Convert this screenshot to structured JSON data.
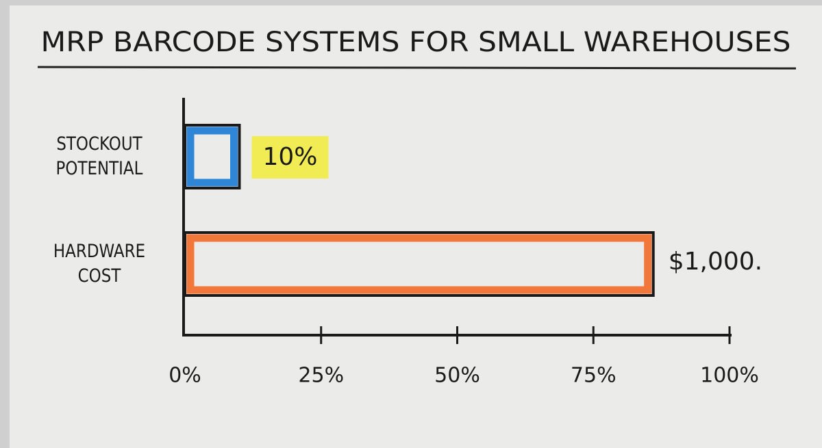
{
  "chart_data": {
    "type": "hbar",
    "title": "MRP BARCODE SYSTEMS FOR SMALL WAREHOUSES",
    "categories": [
      "STOCKOUT POTENTIAL",
      "HARDWARE COST"
    ],
    "values": [
      10,
      86
    ],
    "value_labels": [
      "10%",
      null
    ],
    "annotations": [
      null,
      "$1,000."
    ],
    "colors": [
      "#2f86d6",
      "#f2773a"
    ],
    "xlim": [
      0,
      100
    ],
    "xticks": [
      {
        "value": 0,
        "label": "0%"
      },
      {
        "value": 25,
        "label": "25%"
      },
      {
        "value": 50,
        "label": "50%"
      },
      {
        "value": 75,
        "label": "75%"
      },
      {
        "value": 100,
        "label": "100%"
      }
    ],
    "highlight_color": "#f3ec3a"
  }
}
